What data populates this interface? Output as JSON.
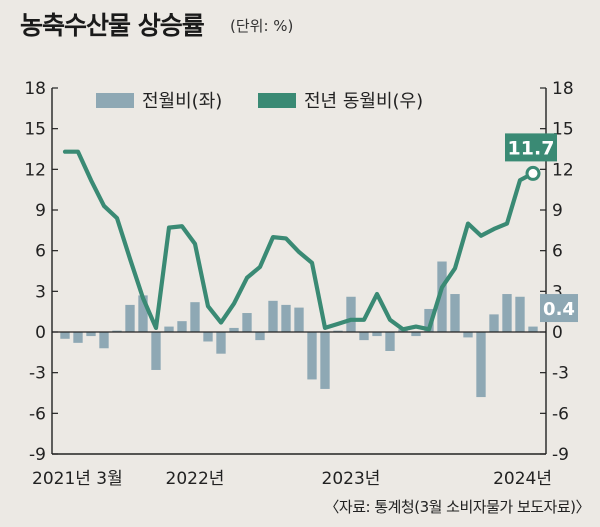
{
  "chart_data": {
    "type": "bar+line",
    "title": "농축수산물 상승률",
    "subtitle": "(단위: %)",
    "ylim": [
      -9,
      18
    ],
    "yticks": [
      "18",
      "15",
      "12",
      "9",
      "6",
      "3",
      "0",
      "-3",
      "-6",
      "-9"
    ],
    "x_tick_labels": [
      "2021년 3월",
      "2022년",
      "2023년",
      "2024년"
    ],
    "x_tick_positions": [
      0,
      10,
      22,
      34
    ],
    "categories": [
      "2021-03",
      "2021-04",
      "2021-05",
      "2021-06",
      "2021-07",
      "2021-08",
      "2021-09",
      "2021-10",
      "2021-11",
      "2021-12",
      "2022-01",
      "2022-02",
      "2022-03",
      "2022-04",
      "2022-05",
      "2022-06",
      "2022-07",
      "2022-08",
      "2022-09",
      "2022-10",
      "2022-11",
      "2022-12",
      "2023-01",
      "2023-02",
      "2023-03",
      "2023-04",
      "2023-05",
      "2023-06",
      "2023-07",
      "2023-08",
      "2023-09",
      "2023-10",
      "2023-11",
      "2023-12",
      "2024-01",
      "2024-02",
      "2024-03"
    ],
    "series": [
      {
        "name": "전월비(좌)",
        "kind": "bar",
        "color": "#8ea8b4",
        "values": [
          -0.5,
          -0.8,
          -0.3,
          -1.2,
          0.1,
          2.0,
          2.7,
          -2.8,
          0.4,
          0.8,
          2.2,
          -0.7,
          -1.6,
          0.3,
          1.4,
          -0.6,
          2.3,
          2.0,
          1.8,
          -3.5,
          -4.2,
          0.1,
          2.6,
          -0.6,
          -0.3,
          -1.4,
          0.2,
          -0.3,
          1.7,
          5.2,
          2.8,
          -0.4,
          -4.8,
          1.3,
          2.8,
          2.6,
          0.4
        ]
      },
      {
        "name": "전년 동월비(우)",
        "kind": "line",
        "color": "#3a8a74",
        "values": [
          13.3,
          13.3,
          11.2,
          9.3,
          8.4,
          5.4,
          2.5,
          0.3,
          7.7,
          7.8,
          6.5,
          1.9,
          0.7,
          2.1,
          4.0,
          4.8,
          7.0,
          6.9,
          5.9,
          5.1,
          0.3,
          0.6,
          0.9,
          0.9,
          2.8,
          0.9,
          0.2,
          0.4,
          0.2,
          3.3,
          4.7,
          8.0,
          7.1,
          7.6,
          8.0,
          11.2,
          11.7
        ]
      }
    ],
    "annotations": [
      {
        "label": "11.7",
        "series": 1,
        "index": 36,
        "color": "#3a8a74"
      },
      {
        "label": "0.4",
        "series": 0,
        "index": 36,
        "color": "#8ea8b4"
      }
    ],
    "legend_position": "top-left",
    "grid": false
  },
  "source_note": "〈자료: 통계청(3월 소비자물가 보도자료)〉"
}
